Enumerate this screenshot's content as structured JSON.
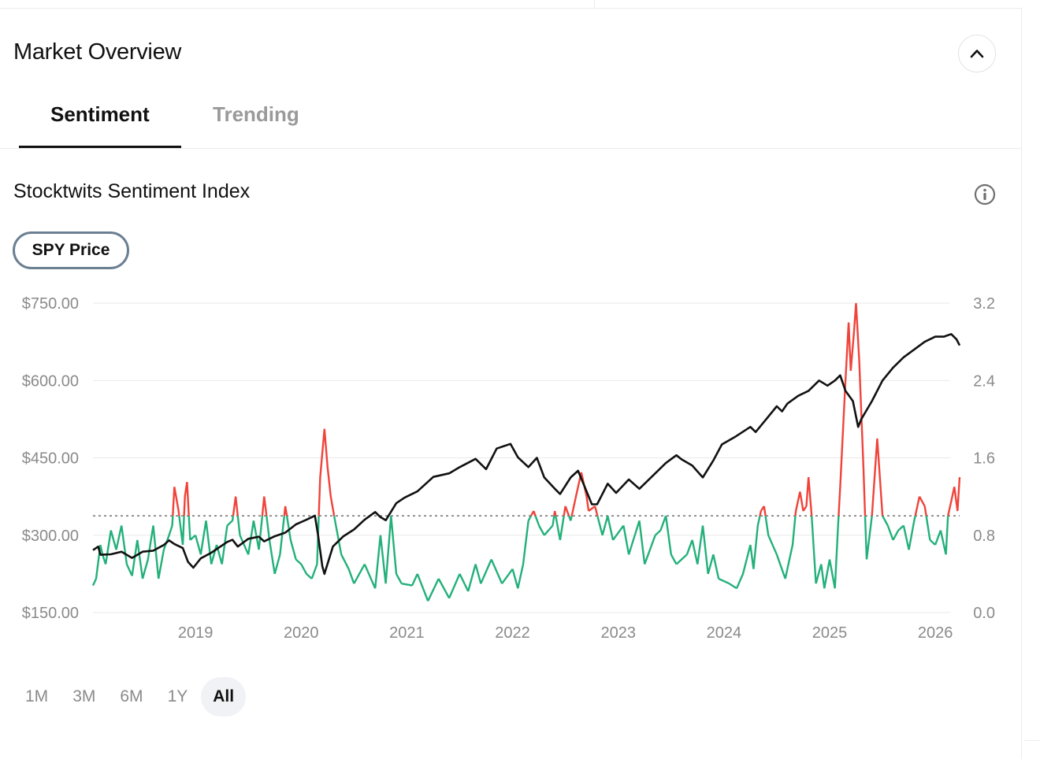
{
  "panel": {
    "title": "Market Overview",
    "collapse_icon": "chevron-up-icon"
  },
  "tabs": [
    {
      "label": "Sentiment",
      "active": true
    },
    {
      "label": "Trending",
      "active": false
    }
  ],
  "section": {
    "title": "Stocktwits Sentiment Index",
    "info_icon": "info-icon"
  },
  "toggle": {
    "label": "SPY Price"
  },
  "ranges": [
    {
      "label": "1M",
      "active": false
    },
    {
      "label": "3M",
      "active": false
    },
    {
      "label": "6M",
      "active": false
    },
    {
      "label": "1Y",
      "active": false
    },
    {
      "label": "All",
      "active": true
    }
  ],
  "colors": {
    "price": "#111111",
    "bull": "#23b07a",
    "bear": "#f0433a",
    "grid": "#e9e9e9",
    "axis_text": "#8a8a8a"
  },
  "chart_data": {
    "type": "line",
    "title": "Stocktwits Sentiment Index",
    "left_axis": {
      "ticks": [
        "$150.00",
        "$300.00",
        "$450.00",
        "$600.00",
        "$750.00"
      ],
      "min": 150,
      "max": 750
    },
    "right_axis": {
      "ticks": [
        "0.0",
        "0.8",
        "1.6",
        "2.4",
        "3.2"
      ],
      "min": 0,
      "max": 3.2
    },
    "x_axis": {
      "ticks": [
        "2019",
        "2020",
        "2021",
        "2022",
        "2023",
        "2024",
        "2025",
        "2026"
      ],
      "min": 2018.03,
      "max": 2026.23
    },
    "threshold": 1.0,
    "series": [
      {
        "name": "SPY Price",
        "axis": "left",
        "points": [
          [
            2018.03,
            271
          ],
          [
            2018.08,
            278
          ],
          [
            2018.1,
            262
          ],
          [
            2018.2,
            263
          ],
          [
            2018.3,
            268
          ],
          [
            2018.4,
            256
          ],
          [
            2018.5,
            268
          ],
          [
            2018.6,
            270
          ],
          [
            2018.7,
            281
          ],
          [
            2018.75,
            290
          ],
          [
            2018.8,
            283
          ],
          [
            2018.88,
            275
          ],
          [
            2018.93,
            248
          ],
          [
            2018.98,
            237
          ],
          [
            2019.05,
            255
          ],
          [
            2019.15,
            266
          ],
          [
            2019.3,
            287
          ],
          [
            2019.35,
            291
          ],
          [
            2019.4,
            278
          ],
          [
            2019.5,
            293
          ],
          [
            2019.6,
            297
          ],
          [
            2019.65,
            288
          ],
          [
            2019.75,
            298
          ],
          [
            2019.85,
            305
          ],
          [
            2019.95,
            321
          ],
          [
            2020.05,
            330
          ],
          [
            2020.13,
            338
          ],
          [
            2020.16,
            300
          ],
          [
            2020.2,
            240
          ],
          [
            2020.22,
            225
          ],
          [
            2020.3,
            278
          ],
          [
            2020.4,
            298
          ],
          [
            2020.5,
            311
          ],
          [
            2020.6,
            330
          ],
          [
            2020.7,
            345
          ],
          [
            2020.75,
            335
          ],
          [
            2020.8,
            329
          ],
          [
            2020.9,
            362
          ],
          [
            2020.98,
            373
          ],
          [
            2021.1,
            385
          ],
          [
            2021.25,
            413
          ],
          [
            2021.4,
            420
          ],
          [
            2021.5,
            432
          ],
          [
            2021.65,
            448
          ],
          [
            2021.75,
            428
          ],
          [
            2021.85,
            468
          ],
          [
            2021.98,
            477
          ],
          [
            2022.05,
            451
          ],
          [
            2022.15,
            432
          ],
          [
            2022.23,
            450
          ],
          [
            2022.3,
            412
          ],
          [
            2022.4,
            390
          ],
          [
            2022.45,
            380
          ],
          [
            2022.55,
            412
          ],
          [
            2022.62,
            425
          ],
          [
            2022.68,
            395
          ],
          [
            2022.75,
            360
          ],
          [
            2022.8,
            360
          ],
          [
            2022.9,
            400
          ],
          [
            2022.98,
            382
          ],
          [
            2023.1,
            408
          ],
          [
            2023.2,
            390
          ],
          [
            2023.3,
            410
          ],
          [
            2023.45,
            440
          ],
          [
            2023.55,
            455
          ],
          [
            2023.6,
            447
          ],
          [
            2023.7,
            435
          ],
          [
            2023.8,
            412
          ],
          [
            2023.9,
            445
          ],
          [
            2023.98,
            476
          ],
          [
            2024.1,
            490
          ],
          [
            2024.25,
            510
          ],
          [
            2024.3,
            500
          ],
          [
            2024.4,
            525
          ],
          [
            2024.5,
            550
          ],
          [
            2024.55,
            540
          ],
          [
            2024.6,
            555
          ],
          [
            2024.7,
            570
          ],
          [
            2024.8,
            580
          ],
          [
            2024.9,
            600
          ],
          [
            2024.98,
            590
          ],
          [
            2025.05,
            600
          ],
          [
            2025.1,
            610
          ],
          [
            2025.15,
            580
          ],
          [
            2025.22,
            560
          ],
          [
            2025.27,
            510
          ],
          [
            2025.3,
            525
          ],
          [
            2025.4,
            560
          ],
          [
            2025.5,
            600
          ],
          [
            2025.6,
            625
          ],
          [
            2025.7,
            645
          ],
          [
            2025.8,
            660
          ],
          [
            2025.9,
            675
          ],
          [
            2026.0,
            685
          ],
          [
            2026.08,
            685
          ],
          [
            2026.15,
            690
          ],
          [
            2026.2,
            680
          ],
          [
            2026.23,
            668
          ]
        ]
      },
      {
        "name": "Sentiment Index",
        "axis": "right",
        "points": [
          [
            2018.03,
            0.28
          ],
          [
            2018.06,
            0.35
          ],
          [
            2018.1,
            0.7
          ],
          [
            2018.12,
            0.6
          ],
          [
            2018.15,
            0.5
          ],
          [
            2018.2,
            0.85
          ],
          [
            2018.25,
            0.65
          ],
          [
            2018.3,
            0.9
          ],
          [
            2018.35,
            0.5
          ],
          [
            2018.4,
            0.38
          ],
          [
            2018.45,
            0.75
          ],
          [
            2018.5,
            0.35
          ],
          [
            2018.55,
            0.55
          ],
          [
            2018.6,
            0.9
          ],
          [
            2018.65,
            0.35
          ],
          [
            2018.7,
            0.65
          ],
          [
            2018.75,
            0.8
          ],
          [
            2018.78,
            0.9
          ],
          [
            2018.8,
            1.3
          ],
          [
            2018.84,
            1.05
          ],
          [
            2018.88,
            0.7
          ],
          [
            2018.9,
            1.2
          ],
          [
            2018.92,
            1.35
          ],
          [
            2018.95,
            0.75
          ],
          [
            2019.0,
            0.8
          ],
          [
            2019.05,
            0.6
          ],
          [
            2019.1,
            0.95
          ],
          [
            2019.15,
            0.5
          ],
          [
            2019.2,
            0.7
          ],
          [
            2019.25,
            0.5
          ],
          [
            2019.3,
            0.9
          ],
          [
            2019.35,
            0.95
          ],
          [
            2019.38,
            1.2
          ],
          [
            2019.42,
            0.8
          ],
          [
            2019.5,
            0.6
          ],
          [
            2019.55,
            0.95
          ],
          [
            2019.6,
            0.65
          ],
          [
            2019.65,
            1.2
          ],
          [
            2019.7,
            0.75
          ],
          [
            2019.75,
            0.4
          ],
          [
            2019.8,
            0.6
          ],
          [
            2019.85,
            1.1
          ],
          [
            2019.9,
            0.75
          ],
          [
            2019.95,
            0.55
          ],
          [
            2020.0,
            0.5
          ],
          [
            2020.05,
            0.4
          ],
          [
            2020.1,
            0.35
          ],
          [
            2020.15,
            0.5
          ],
          [
            2020.18,
            1.4
          ],
          [
            2020.22,
            1.9
          ],
          [
            2020.25,
            1.5
          ],
          [
            2020.28,
            1.2
          ],
          [
            2020.32,
            0.95
          ],
          [
            2020.38,
            0.6
          ],
          [
            2020.45,
            0.45
          ],
          [
            2020.5,
            0.3
          ],
          [
            2020.6,
            0.5
          ],
          [
            2020.7,
            0.25
          ],
          [
            2020.75,
            0.8
          ],
          [
            2020.8,
            0.3
          ],
          [
            2020.85,
            1.0
          ],
          [
            2020.9,
            0.4
          ],
          [
            2020.95,
            0.3
          ],
          [
            2021.05,
            0.28
          ],
          [
            2021.1,
            0.4
          ],
          [
            2021.2,
            0.12
          ],
          [
            2021.3,
            0.35
          ],
          [
            2021.4,
            0.15
          ],
          [
            2021.5,
            0.4
          ],
          [
            2021.58,
            0.22
          ],
          [
            2021.65,
            0.5
          ],
          [
            2021.7,
            0.3
          ],
          [
            2021.8,
            0.55
          ],
          [
            2021.9,
            0.3
          ],
          [
            2022.0,
            0.45
          ],
          [
            2022.05,
            0.25
          ],
          [
            2022.1,
            0.5
          ],
          [
            2022.15,
            0.95
          ],
          [
            2022.2,
            1.05
          ],
          [
            2022.25,
            0.9
          ],
          [
            2022.3,
            0.8
          ],
          [
            2022.38,
            0.9
          ],
          [
            2022.4,
            1.05
          ],
          [
            2022.45,
            0.75
          ],
          [
            2022.5,
            1.1
          ],
          [
            2022.55,
            0.95
          ],
          [
            2022.6,
            1.2
          ],
          [
            2022.65,
            1.45
          ],
          [
            2022.7,
            1.2
          ],
          [
            2022.72,
            1.05
          ],
          [
            2022.78,
            1.1
          ],
          [
            2022.85,
            0.8
          ],
          [
            2022.9,
            1.0
          ],
          [
            2022.95,
            0.75
          ],
          [
            2023.05,
            0.9
          ],
          [
            2023.1,
            0.6
          ],
          [
            2023.2,
            0.95
          ],
          [
            2023.25,
            0.5
          ],
          [
            2023.35,
            0.8
          ],
          [
            2023.4,
            0.85
          ],
          [
            2023.45,
            1.0
          ],
          [
            2023.5,
            0.6
          ],
          [
            2023.55,
            0.5
          ],
          [
            2023.65,
            0.6
          ],
          [
            2023.7,
            0.75
          ],
          [
            2023.75,
            0.5
          ],
          [
            2023.8,
            0.9
          ],
          [
            2023.85,
            0.4
          ],
          [
            2023.9,
            0.6
          ],
          [
            2023.95,
            0.35
          ],
          [
            2024.05,
            0.3
          ],
          [
            2024.12,
            0.25
          ],
          [
            2024.18,
            0.4
          ],
          [
            2024.25,
            0.7
          ],
          [
            2024.28,
            0.45
          ],
          [
            2024.32,
            0.9
          ],
          [
            2024.35,
            1.05
          ],
          [
            2024.38,
            1.1
          ],
          [
            2024.42,
            0.8
          ],
          [
            2024.5,
            0.6
          ],
          [
            2024.58,
            0.35
          ],
          [
            2024.65,
            0.7
          ],
          [
            2024.68,
            1.05
          ],
          [
            2024.72,
            1.25
          ],
          [
            2024.75,
            1.05
          ],
          [
            2024.78,
            1.1
          ],
          [
            2024.8,
            1.4
          ],
          [
            2024.83,
            1.0
          ],
          [
            2024.87,
            0.3
          ],
          [
            2024.92,
            0.5
          ],
          [
            2024.95,
            0.25
          ],
          [
            2025.0,
            0.55
          ],
          [
            2025.05,
            0.25
          ],
          [
            2025.08,
            0.9
          ],
          [
            2025.1,
            1.3
          ],
          [
            2025.15,
            2.4
          ],
          [
            2025.18,
            3.0
          ],
          [
            2025.2,
            2.5
          ],
          [
            2025.23,
            2.9
          ],
          [
            2025.25,
            3.2
          ],
          [
            2025.28,
            2.6
          ],
          [
            2025.32,
            1.5
          ],
          [
            2025.35,
            0.55
          ],
          [
            2025.4,
            1.0
          ],
          [
            2025.45,
            1.8
          ],
          [
            2025.5,
            1.0
          ],
          [
            2025.55,
            0.9
          ],
          [
            2025.6,
            0.75
          ],
          [
            2025.65,
            0.85
          ],
          [
            2025.7,
            0.9
          ],
          [
            2025.75,
            0.65
          ],
          [
            2025.8,
            0.95
          ],
          [
            2025.85,
            1.2
          ],
          [
            2025.9,
            1.1
          ],
          [
            2025.95,
            0.75
          ],
          [
            2026.0,
            0.7
          ],
          [
            2026.05,
            0.85
          ],
          [
            2026.1,
            0.6
          ],
          [
            2026.12,
            1.0
          ],
          [
            2026.15,
            1.15
          ],
          [
            2026.18,
            1.3
          ],
          [
            2026.21,
            1.05
          ],
          [
            2026.23,
            1.4
          ]
        ]
      }
    ]
  }
}
